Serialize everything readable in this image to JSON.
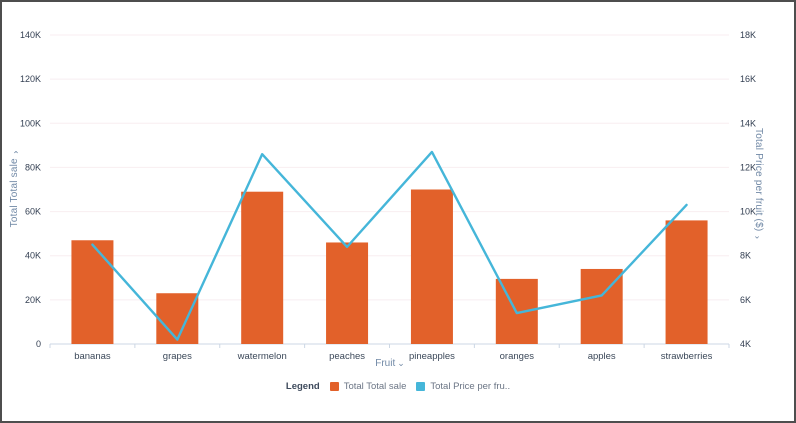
{
  "window": {
    "background": "#ffffff",
    "frame_border": "#4e4e4e"
  },
  "icons": {
    "chevron_down": "⌄"
  },
  "colors": {
    "grid": "#f8eef0",
    "axis_line": "#ccd7e4",
    "tick_text": "#333f52",
    "category_text": "#3b4859",
    "axis_title": "#7189a6",
    "bar": "#e2612a",
    "line": "#45b6d9"
  },
  "chart_data": {
    "type": "bar",
    "subtype": "combo bar + line, dual y-axes",
    "categories": [
      "bananas",
      "grapes",
      "watermelon",
      "peaches",
      "pineapples",
      "oranges",
      "apples",
      "strawberries"
    ],
    "series": [
      {
        "name": "Total Total sale",
        "type": "bar",
        "axis": "left",
        "color": "#e2612a",
        "values": [
          47000,
          23000,
          69000,
          46000,
          70000,
          29500,
          34000,
          56000
        ]
      },
      {
        "name": "Total Price per fruit ($)",
        "type": "line",
        "axis": "right",
        "color": "#45b6d9",
        "values": [
          8500,
          4200,
          12600,
          8400,
          12700,
          5400,
          6200,
          10300
        ]
      }
    ],
    "xlabel": "Fruit",
    "left_axis": {
      "label": "Total Total sale",
      "min": 0,
      "max": 140000,
      "tick_labels": [
        "0",
        "20K",
        "40K",
        "60K",
        "80K",
        "100K",
        "120K",
        "140K"
      ]
    },
    "right_axis": {
      "label": "Total Price per fruit ($)",
      "min": 4000,
      "max": 18000,
      "tick_labels": [
        "4K",
        "6K",
        "8K",
        "10K",
        "12K",
        "14K",
        "16K",
        "18K"
      ]
    },
    "grid": "horizontal faint gridlines, legend bottom center",
    "legend": {
      "title": "Legend",
      "items": [
        {
          "label": "Total Total sale",
          "color": "#e2612a"
        },
        {
          "label": "Total Price per fru..",
          "color": "#45b6d9"
        }
      ]
    }
  }
}
